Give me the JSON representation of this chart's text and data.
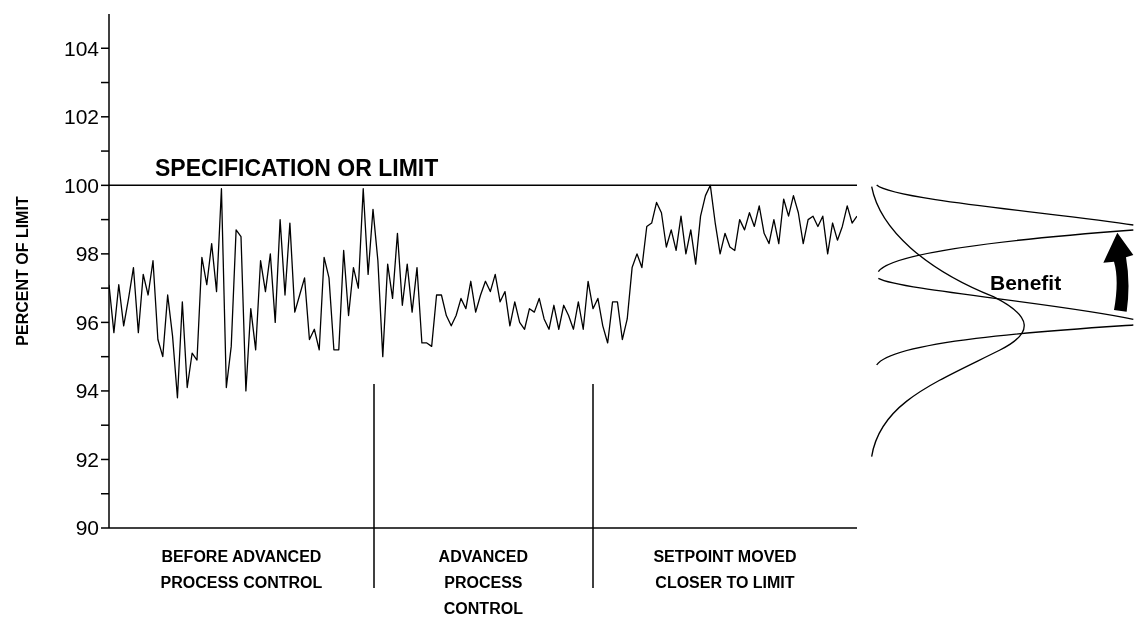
{
  "chart_data": {
    "type": "line",
    "ylabel": "PERCENT OF LIMIT",
    "ylim": [
      90,
      105
    ],
    "yticks": [
      90,
      {
        "value": 91,
        "label": null
      },
      92,
      {
        "value": 93,
        "label": null
      },
      94,
      {
        "value": 95,
        "label": null
      },
      96,
      {
        "value": 97,
        "label": null
      },
      98,
      {
        "value": 99,
        "label": null
      },
      100,
      {
        "value": 101,
        "label": null
      },
      102,
      {
        "value": 103,
        "label": null
      },
      104
    ],
    "categories": [
      null,
      null,
      null,
      null,
      null,
      null,
      null,
      null,
      null,
      null,
      null,
      null,
      null,
      null,
      null,
      null,
      null,
      null,
      null,
      null,
      null,
      null,
      null,
      null,
      null,
      null,
      null,
      null,
      null,
      null,
      null,
      null,
      null,
      null,
      null,
      null,
      null,
      null,
      null,
      null,
      null,
      null,
      null,
      null,
      null,
      null,
      null,
      null,
      null,
      null,
      null,
      null,
      null,
      null,
      null,
      null,
      null,
      null,
      null,
      null,
      null,
      null,
      null,
      null,
      null,
      null,
      null,
      null,
      null,
      null,
      null,
      null,
      null,
      null,
      null,
      null,
      null,
      null,
      null,
      null,
      null,
      null,
      null,
      null,
      null,
      null,
      null,
      null,
      null,
      null,
      null,
      null,
      null,
      null,
      null,
      null,
      null,
      null,
      null,
      null,
      null,
      null,
      null,
      null,
      null,
      null,
      null,
      null,
      null,
      null,
      null,
      null,
      null,
      null,
      null,
      null,
      null,
      null,
      null,
      null,
      null,
      null,
      null,
      null,
      null,
      null,
      null,
      null,
      null,
      null,
      null,
      null,
      null,
      null,
      null,
      null,
      null,
      null,
      null,
      null,
      null,
      null,
      null,
      null,
      null,
      null,
      null,
      null,
      null,
      null,
      null,
      null,
      null,
      null
    ],
    "tick_labels": "y",
    "marker": "none",
    "line_style": "solid",
    "series": [
      {
        "color": "#000000",
        "values": [
          97.1,
          95.7,
          97.1,
          95.9,
          96.7,
          97.6,
          95.7,
          97.4,
          96.8,
          97.8,
          95.5,
          95.0,
          96.8,
          95.6,
          93.8,
          96.6,
          94.1,
          95.1,
          94.9,
          97.9,
          97.1,
          98.3,
          96.9,
          99.9,
          94.1,
          95.3,
          98.7,
          98.5,
          94.0,
          96.4,
          95.2,
          97.8,
          96.9,
          98.0,
          96.0,
          99.0,
          96.8,
          98.9,
          96.3,
          96.8,
          97.3,
          95.5,
          95.8,
          95.2,
          97.9,
          97.3,
          95.2,
          95.2,
          98.1,
          96.2,
          97.6,
          97.0,
          99.9,
          97.4,
          99.3,
          97.8,
          95.0,
          97.7,
          96.7,
          98.6,
          96.5,
          97.7,
          96.3,
          97.6,
          95.4,
          95.4,
          95.3,
          96.8,
          96.8,
          96.2,
          95.9,
          96.2,
          96.7,
          96.4,
          97.2,
          96.3,
          96.8,
          97.2,
          96.9,
          97.4,
          96.6,
          96.9,
          95.9,
          96.6,
          96.0,
          95.8,
          96.4,
          96.3,
          96.7,
          96.1,
          95.8,
          96.5,
          95.8,
          96.5,
          96.2,
          95.8,
          96.6,
          95.8,
          97.2,
          96.4,
          96.7,
          95.9,
          95.4,
          96.6,
          96.6,
          95.5,
          96.1,
          97.6,
          98.0,
          97.6,
          98.8,
          98.9,
          99.5,
          99.2,
          98.2,
          98.7,
          98.1,
          99.1,
          98.0,
          98.7,
          97.7,
          99.1,
          99.7,
          100.0,
          98.9,
          98.0,
          98.6,
          98.2,
          98.1,
          99.0,
          98.7,
          99.2,
          98.8,
          99.4,
          98.6,
          98.3,
          99.0,
          98.3,
          99.6,
          99.1,
          99.7,
          99.2,
          98.3,
          99.0,
          99.1,
          98.8,
          99.1,
          98.0,
          98.9,
          98.4,
          98.8,
          99.4,
          98.9,
          99.1
        ]
      }
    ],
    "ref_lines": [
      {
        "axis": "y",
        "value": 100,
        "label": "SPECIFICATION OR LIMIT",
        "color": "#000000"
      }
    ],
    "annotations": [
      "BEFORE ADVANCED\nPROCESS CONTROL",
      "ADVANCED\nPROCESS\nCONTROL",
      "SETPOINT MOVED\nCLOSER TO LIMIT",
      "Benefit"
    ]
  }
}
